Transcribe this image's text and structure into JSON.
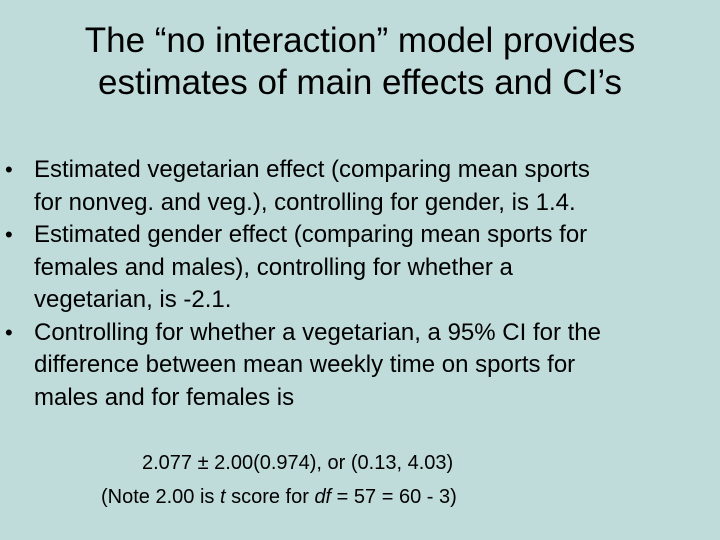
{
  "title": {
    "line1": "The “no interaction” model provides",
    "line2": "estimates of main effects and CI’s"
  },
  "bullets": [
    {
      "lines": [
        "Estimated vegetarian effect (comparing mean sports",
        "for nonveg. and veg.), controlling for gender, is 1.4."
      ]
    },
    {
      "lines": [
        "Estimated gender effect (comparing mean sports for",
        "females and males), controlling for whether a",
        "vegetarian, is -2.1."
      ]
    },
    {
      "lines": [
        "Controlling for whether a vegetarian, a 95% CI for the",
        "difference between mean weekly time on sports for",
        "males and for females is"
      ]
    }
  ],
  "bullet_symbol": "•",
  "formula": "2.077 ± 2.00(0.974),   or   (0.13, 4.03)",
  "note": {
    "part1": "(Note 2.00 is ",
    "t": "t",
    "part2": " score for ",
    "df": "df",
    "part3": " = 57 = 60 - 3)"
  }
}
